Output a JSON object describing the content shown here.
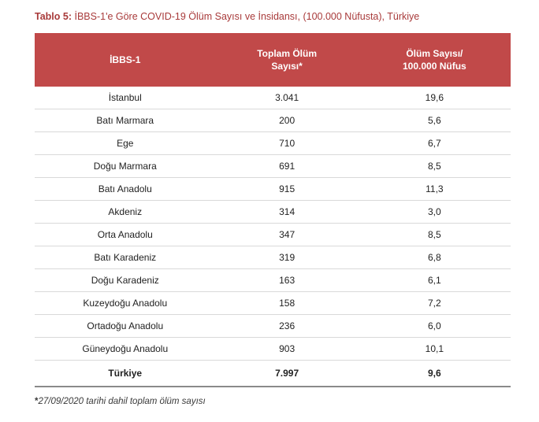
{
  "caption": {
    "label": "Tablo 5:",
    "text": " İBBS-1'e Göre COVID-19 Ölüm Sayısı ve İnsidansı, (100.000 Nüfusta), Türkiye"
  },
  "table": {
    "columns": [
      {
        "line1": "İBBS-1",
        "line2": ""
      },
      {
        "line1": "Toplam Ölüm",
        "line2": "Sayısı*"
      },
      {
        "line1": "Ölüm Sayısı/",
        "line2": "100.000 Nüfus"
      }
    ],
    "rows": [
      {
        "region": "İstanbul",
        "deaths": "3.041",
        "rate": "19,6"
      },
      {
        "region": "Batı Marmara",
        "deaths": "200",
        "rate": "5,6"
      },
      {
        "region": "Ege",
        "deaths": "710",
        "rate": "6,7"
      },
      {
        "region": "Doğu Marmara",
        "deaths": "691",
        "rate": "8,5"
      },
      {
        "region": "Batı Anadolu",
        "deaths": "915",
        "rate": "11,3"
      },
      {
        "region": "Akdeniz",
        "deaths": "314",
        "rate": "3,0"
      },
      {
        "region": "Orta Anadolu",
        "deaths": "347",
        "rate": "8,5"
      },
      {
        "region": "Batı Karadeniz",
        "deaths": "319",
        "rate": "6,8"
      },
      {
        "region": "Doğu Karadeniz",
        "deaths": "163",
        "rate": "6,1"
      },
      {
        "region": "Kuzeydoğu Anadolu",
        "deaths": "158",
        "rate": "7,2"
      },
      {
        "region": "Ortadoğu Anadolu",
        "deaths": "236",
        "rate": "6,0"
      },
      {
        "region": "Güneydoğu Anadolu",
        "deaths": "903",
        "rate": "10,1"
      }
    ],
    "total": {
      "region": "Türkiye",
      "deaths": "7.997",
      "rate": "9,6"
    }
  },
  "footnote": {
    "star": "*",
    "text": "27/09/2020 tarihi dahil toplam ölüm sayısı"
  },
  "style": {
    "header_bg": "#c14949",
    "header_fg": "#ffffff",
    "caption_color": "#a83a3a",
    "row_border": "#d9d9d9",
    "text_color": "#222222"
  }
}
